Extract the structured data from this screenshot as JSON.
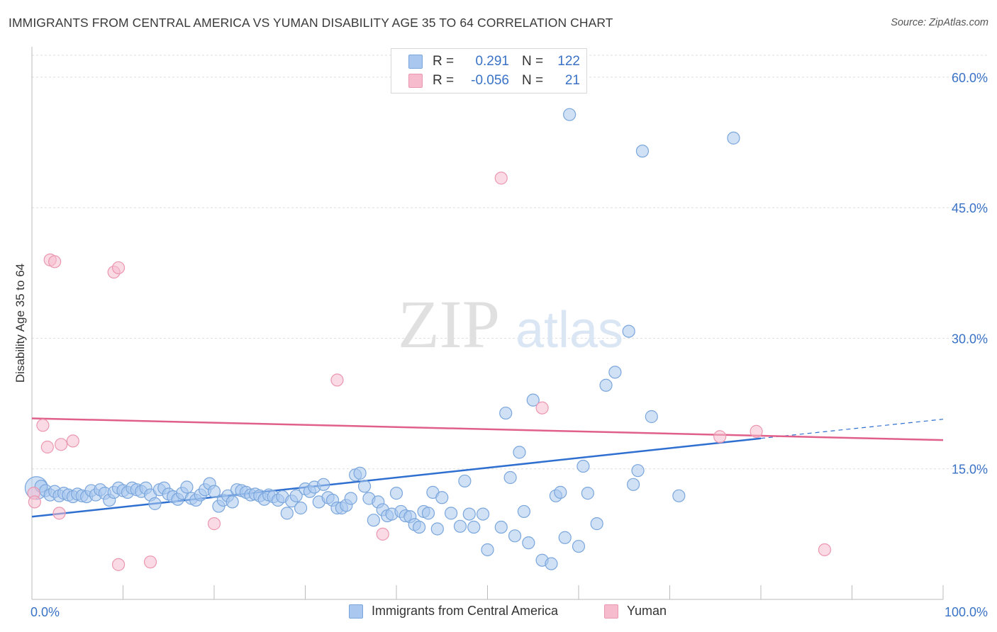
{
  "header": {
    "title": "IMMIGRANTS FROM CENTRAL AMERICA VS YUMAN DISABILITY AGE 35 TO 64 CORRELATION CHART",
    "source": "Source: ZipAtlas.com"
  },
  "legend": {
    "rows": [
      {
        "r_label": "R =",
        "r_value": "0.291",
        "n_label": "N =",
        "n_value": "122"
      },
      {
        "r_label": "R =",
        "r_value": "-0.056",
        "n_label": "N =",
        "n_value": "21"
      }
    ]
  },
  "bottom_legend": {
    "series1": "Immigrants from Central America",
    "series2": "Yuman"
  },
  "watermark": {
    "zip": "ZIP",
    "atlas": "atlas"
  },
  "colors": {
    "blue_fill": "#aac8ef",
    "blue_stroke": "#7aa6dc",
    "blue_line": "#2f6fd0",
    "pink_fill": "#f6bccd",
    "pink_stroke": "#eb97b0",
    "pink_line": "#e0608a",
    "axis_text": "#3a72c6",
    "grid": "#dddddd"
  },
  "chart_data": {
    "type": "scatter",
    "title": "IMMIGRANTS FROM CENTRAL AMERICA VS YUMAN DISABILITY AGE 35 TO 64 CORRELATION CHART",
    "xlabel": "",
    "ylabel": "Disability Age 35 to 64",
    "xlim": [
      0,
      100
    ],
    "ylim": [
      0,
      63
    ],
    "x_tick_labels": [
      "0.0%",
      "100.0%"
    ],
    "y_ticks": [
      15,
      30,
      45,
      60
    ],
    "y_tick_labels": [
      "15.0%",
      "30.0%",
      "45.0%",
      "60.0%"
    ],
    "legend_position": "top-center",
    "series": [
      {
        "name": "Immigrants from Central America",
        "color": "blue",
        "R": 0.291,
        "N": 122,
        "trend": {
          "x0": 0,
          "y0": 9.5,
          "x1": 80,
          "y1": 18.5,
          "dashed_to_x": 100,
          "dashed_to_y": 20.7
        },
        "points": [
          [
            0.5,
            12.8
          ],
          [
            1.0,
            13.0
          ],
          [
            1.5,
            12.5
          ],
          [
            2.0,
            12.0
          ],
          [
            2.5,
            12.4
          ],
          [
            3.0,
            11.9
          ],
          [
            3.5,
            12.2
          ],
          [
            4.0,
            12.0
          ],
          [
            4.5,
            11.8
          ],
          [
            5.0,
            12.1
          ],
          [
            5.5,
            11.9
          ],
          [
            6.0,
            11.8
          ],
          [
            6.5,
            12.5
          ],
          [
            7.0,
            12.0
          ],
          [
            7.5,
            12.6
          ],
          [
            8.0,
            12.2
          ],
          [
            8.5,
            11.4
          ],
          [
            9.0,
            12.3
          ],
          [
            9.5,
            12.8
          ],
          [
            10.0,
            12.5
          ],
          [
            10.5,
            12.3
          ],
          [
            11.0,
            12.8
          ],
          [
            11.5,
            12.6
          ],
          [
            12.0,
            12.4
          ],
          [
            12.5,
            12.8
          ],
          [
            13.0,
            12.0
          ],
          [
            13.5,
            11.0
          ],
          [
            14.0,
            12.6
          ],
          [
            14.5,
            12.8
          ],
          [
            15.0,
            12.1
          ],
          [
            15.5,
            11.8
          ],
          [
            16.0,
            11.5
          ],
          [
            16.5,
            12.2
          ],
          [
            17.0,
            12.9
          ],
          [
            17.5,
            11.6
          ],
          [
            18.0,
            11.4
          ],
          [
            18.5,
            12.0
          ],
          [
            19.0,
            12.6
          ],
          [
            19.5,
            13.3
          ],
          [
            20.0,
            12.4
          ],
          [
            20.5,
            10.7
          ],
          [
            21.0,
            11.4
          ],
          [
            21.5,
            11.9
          ],
          [
            22.0,
            11.2
          ],
          [
            22.5,
            12.6
          ],
          [
            23.0,
            12.5
          ],
          [
            23.5,
            12.3
          ],
          [
            24.0,
            12.0
          ],
          [
            24.5,
            12.1
          ],
          [
            25.0,
            11.9
          ],
          [
            25.5,
            11.5
          ],
          [
            26.0,
            12.0
          ],
          [
            26.5,
            11.8
          ],
          [
            27.0,
            11.4
          ],
          [
            27.5,
            11.8
          ],
          [
            28.0,
            9.9
          ],
          [
            28.5,
            11.3
          ],
          [
            29.0,
            11.9
          ],
          [
            29.5,
            10.5
          ],
          [
            30.0,
            12.7
          ],
          [
            30.5,
            12.4
          ],
          [
            31.0,
            12.9
          ],
          [
            31.5,
            11.2
          ],
          [
            32.0,
            13.2
          ],
          [
            32.5,
            11.7
          ],
          [
            33.0,
            11.4
          ],
          [
            33.5,
            10.5
          ],
          [
            34.0,
            10.5
          ],
          [
            34.5,
            10.8
          ],
          [
            35.0,
            11.6
          ],
          [
            35.5,
            14.3
          ],
          [
            36.0,
            14.5
          ],
          [
            36.5,
            13.0
          ],
          [
            37.0,
            11.6
          ],
          [
            37.5,
            9.1
          ],
          [
            38.0,
            11.2
          ],
          [
            38.5,
            10.3
          ],
          [
            39.0,
            9.6
          ],
          [
            39.5,
            9.8
          ],
          [
            40.0,
            12.2
          ],
          [
            40.5,
            10.1
          ],
          [
            41.0,
            9.6
          ],
          [
            41.5,
            9.5
          ],
          [
            42.0,
            8.6
          ],
          [
            42.5,
            8.3
          ],
          [
            43.0,
            10.1
          ],
          [
            43.5,
            9.9
          ],
          [
            44.0,
            12.3
          ],
          [
            44.5,
            8.1
          ],
          [
            45.0,
            11.7
          ],
          [
            46.0,
            9.9
          ],
          [
            47.0,
            8.4
          ],
          [
            47.5,
            13.6
          ],
          [
            48.0,
            9.8
          ],
          [
            48.5,
            8.3
          ],
          [
            49.5,
            9.8
          ],
          [
            50.0,
            5.7
          ],
          [
            51.5,
            8.3
          ],
          [
            52.0,
            21.4
          ],
          [
            52.5,
            14.0
          ],
          [
            53.0,
            7.3
          ],
          [
            53.5,
            16.9
          ],
          [
            54.0,
            10.1
          ],
          [
            54.5,
            6.5
          ],
          [
            55.0,
            22.9
          ],
          [
            56.0,
            4.5
          ],
          [
            57.0,
            4.1
          ],
          [
            57.5,
            11.9
          ],
          [
            58.0,
            12.3
          ],
          [
            58.5,
            7.1
          ],
          [
            59.0,
            55.7
          ],
          [
            60.0,
            6.1
          ],
          [
            60.5,
            15.3
          ],
          [
            61.0,
            12.2
          ],
          [
            62.0,
            8.7
          ],
          [
            63.0,
            24.6
          ],
          [
            64.0,
            26.1
          ],
          [
            65.5,
            30.8
          ],
          [
            66.0,
            13.2
          ],
          [
            66.5,
            14.8
          ],
          [
            67.0,
            51.5
          ],
          [
            68.0,
            21.0
          ],
          [
            71.0,
            11.9
          ],
          [
            77.0,
            53.0
          ]
        ]
      },
      {
        "name": "Yuman",
        "color": "pink",
        "R": -0.056,
        "N": 21,
        "trend": {
          "x0": 0,
          "y0": 20.8,
          "x1": 100,
          "y1": 18.3
        },
        "points": [
          [
            0.2,
            12.2
          ],
          [
            0.3,
            11.2
          ],
          [
            1.2,
            20.0
          ],
          [
            1.7,
            17.5
          ],
          [
            2.0,
            39.0
          ],
          [
            2.5,
            38.8
          ],
          [
            3.0,
            9.9
          ],
          [
            3.2,
            17.8
          ],
          [
            4.5,
            18.2
          ],
          [
            9.0,
            37.6
          ],
          [
            9.5,
            38.1
          ],
          [
            9.5,
            4.0
          ],
          [
            13.0,
            4.3
          ],
          [
            20.0,
            8.7
          ],
          [
            33.5,
            25.2
          ],
          [
            38.5,
            7.5
          ],
          [
            51.5,
            48.4
          ],
          [
            56.0,
            22.0
          ],
          [
            75.5,
            18.7
          ],
          [
            79.5,
            19.3
          ],
          [
            87.0,
            5.7
          ]
        ]
      }
    ]
  }
}
